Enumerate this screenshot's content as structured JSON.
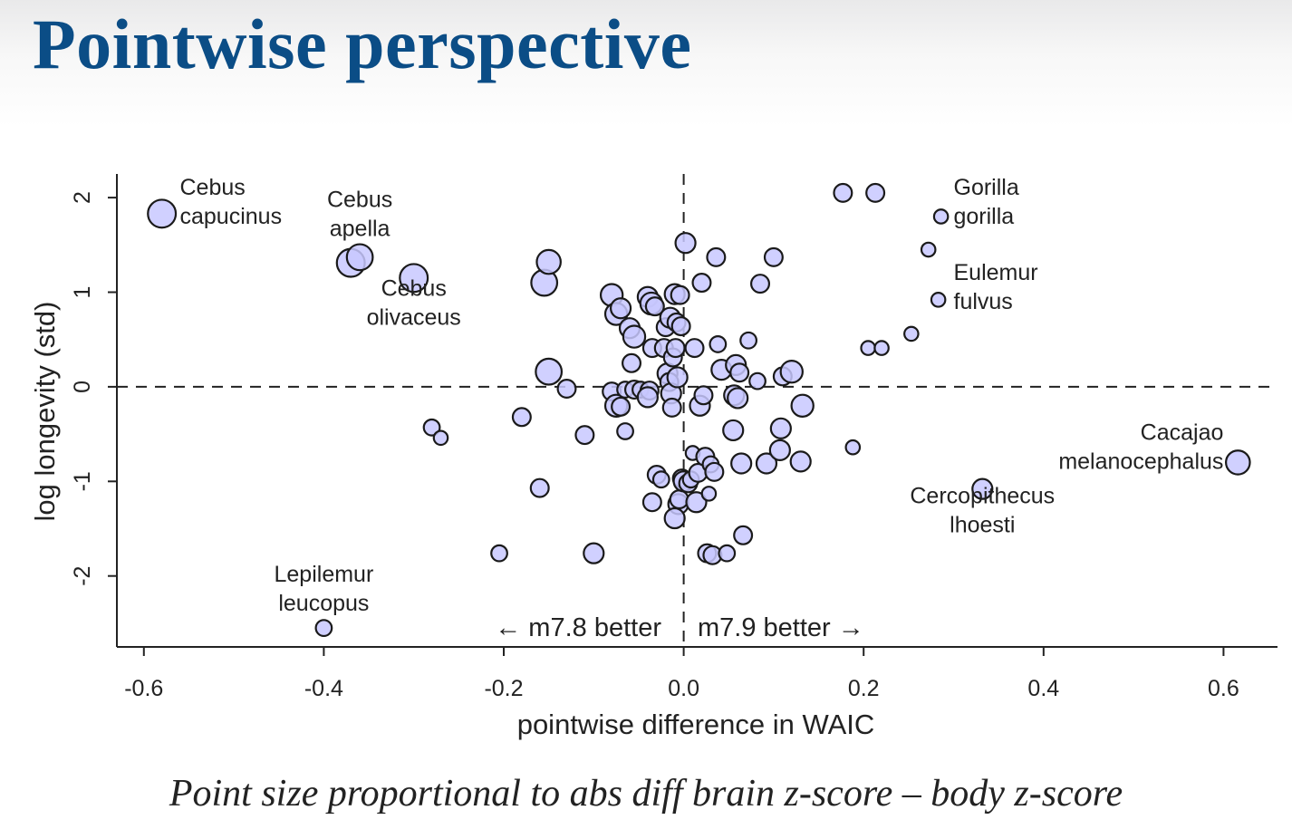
{
  "slide": {
    "title": "Pointwise perspective",
    "caption": "Point size proportional to abs diff brain z-score – body z-score"
  },
  "chart_data": {
    "type": "scatter",
    "xlabel": "pointwise difference in WAIC",
    "ylabel": "log longevity (std)",
    "xlim": [
      -0.63,
      0.66
    ],
    "ylim": [
      -2.75,
      2.25
    ],
    "xticks": [
      -0.6,
      -0.4,
      -0.2,
      0.0,
      0.2,
      0.4,
      0.6
    ],
    "xtick_labels": [
      "-0.6",
      "-0.4",
      "-0.2",
      "0.0",
      "0.2",
      "0.4",
      "0.6"
    ],
    "yticks": [
      -2,
      -1,
      0,
      1,
      2
    ],
    "ytick_labels": [
      "-2",
      "-1",
      "0",
      "1",
      "2"
    ],
    "reference_lines": {
      "x": 0,
      "y": 0,
      "style": "dashed"
    },
    "region_labels": {
      "left": "← m7.8 better",
      "right": "m7.9 better →"
    },
    "colors": {
      "point_fill": "#c8c8ff",
      "point_stroke": "#1a1a1a",
      "axis": "#222222"
    },
    "point_size_note": "abs diff brain z-score – body z-score",
    "points": [
      {
        "x": -0.58,
        "y": 1.83,
        "s": 1.4
      },
      {
        "x": -0.37,
        "y": 1.31,
        "s": 1.4
      },
      {
        "x": -0.36,
        "y": 1.37,
        "s": 1.3
      },
      {
        "x": -0.3,
        "y": 1.15,
        "s": 1.4
      },
      {
        "x": -0.4,
        "y": -2.55,
        "s": 0.8
      },
      {
        "x": -0.28,
        "y": -0.43,
        "s": 0.8
      },
      {
        "x": -0.27,
        "y": -0.54,
        "s": 0.7
      },
      {
        "x": -0.205,
        "y": -1.76,
        "s": 0.8
      },
      {
        "x": -0.18,
        "y": -0.32,
        "s": 0.9
      },
      {
        "x": -0.16,
        "y": -1.07,
        "s": 0.9
      },
      {
        "x": -0.155,
        "y": 1.1,
        "s": 1.3
      },
      {
        "x": -0.15,
        "y": 1.32,
        "s": 1.2
      },
      {
        "x": -0.15,
        "y": 0.16,
        "s": 1.3
      },
      {
        "x": -0.13,
        "y": -0.02,
        "s": 0.9
      },
      {
        "x": -0.11,
        "y": -0.51,
        "s": 0.9
      },
      {
        "x": -0.1,
        "y": -1.76,
        "s": 1.0
      },
      {
        "x": -0.08,
        "y": 0.97,
        "s": 1.1
      },
      {
        "x": -0.075,
        "y": 0.77,
        "s": 1.1
      },
      {
        "x": -0.07,
        "y": 0.83,
        "s": 1.0
      },
      {
        "x": -0.06,
        "y": 0.62,
        "s": 1.0
      },
      {
        "x": -0.055,
        "y": 0.53,
        "s": 1.1
      },
      {
        "x": -0.058,
        "y": 0.25,
        "s": 0.9
      },
      {
        "x": -0.08,
        "y": -0.05,
        "s": 0.9
      },
      {
        "x": -0.075,
        "y": -0.2,
        "s": 1.1
      },
      {
        "x": -0.07,
        "y": -0.21,
        "s": 0.9
      },
      {
        "x": -0.065,
        "y": -0.03,
        "s": 0.8
      },
      {
        "x": -0.065,
        "y": -0.47,
        "s": 0.8
      },
      {
        "x": -0.055,
        "y": -0.03,
        "s": 0.9
      },
      {
        "x": -0.048,
        "y": -0.03,
        "s": 0.8
      },
      {
        "x": -0.04,
        "y": 0.95,
        "s": 1.0
      },
      {
        "x": -0.036,
        "y": 0.88,
        "s": 1.1
      },
      {
        "x": -0.032,
        "y": 0.85,
        "s": 0.9
      },
      {
        "x": -0.035,
        "y": 0.41,
        "s": 0.9
      },
      {
        "x": -0.038,
        "y": -0.04,
        "s": 0.9
      },
      {
        "x": -0.04,
        "y": -0.11,
        "s": 1.0
      },
      {
        "x": -0.035,
        "y": -1.22,
        "s": 0.9
      },
      {
        "x": -0.03,
        "y": -0.93,
        "s": 0.9
      },
      {
        "x": -0.025,
        "y": -0.98,
        "s": 0.8
      },
      {
        "x": -0.022,
        "y": 0.41,
        "s": 0.9
      },
      {
        "x": -0.02,
        "y": 0.63,
        "s": 0.9
      },
      {
        "x": -0.018,
        "y": 0.14,
        "s": 1.0
      },
      {
        "x": -0.016,
        "y": 0.05,
        "s": 0.9
      },
      {
        "x": -0.015,
        "y": 0.73,
        "s": 1.0
      },
      {
        "x": -0.014,
        "y": -0.07,
        "s": 1.0
      },
      {
        "x": -0.013,
        "y": -0.22,
        "s": 0.9
      },
      {
        "x": -0.012,
        "y": 0.31,
        "s": 0.9
      },
      {
        "x": -0.01,
        "y": 0.98,
        "s": 1.0
      },
      {
        "x": -0.009,
        "y": 0.41,
        "s": 0.9
      },
      {
        "x": -0.008,
        "y": 0.68,
        "s": 0.9
      },
      {
        "x": -0.007,
        "y": 0.1,
        "s": 1.0
      },
      {
        "x": -0.006,
        "y": -1.24,
        "s": 1.0
      },
      {
        "x": -0.005,
        "y": -1.19,
        "s": 0.9
      },
      {
        "x": -0.01,
        "y": -1.39,
        "s": 1.0
      },
      {
        "x": -0.004,
        "y": 0.97,
        "s": 0.9
      },
      {
        "x": -0.003,
        "y": 0.64,
        "s": 0.9
      },
      {
        "x": -0.002,
        "y": -0.97,
        "s": 0.9
      },
      {
        "x": 0.0,
        "y": -1.0,
        "s": 1.0
      },
      {
        "x": 0.002,
        "y": 1.52,
        "s": 1.0
      },
      {
        "x": 0.005,
        "y": -1.02,
        "s": 0.9
      },
      {
        "x": 0.008,
        "y": -0.98,
        "s": 0.8
      },
      {
        "x": 0.01,
        "y": -0.7,
        "s": 0.7
      },
      {
        "x": 0.012,
        "y": 0.41,
        "s": 0.9
      },
      {
        "x": 0.014,
        "y": -1.22,
        "s": 1.0
      },
      {
        "x": 0.016,
        "y": -0.91,
        "s": 0.9
      },
      {
        "x": 0.018,
        "y": -0.2,
        "s": 1.0
      },
      {
        "x": 0.02,
        "y": 1.1,
        "s": 0.9
      },
      {
        "x": 0.022,
        "y": -0.09,
        "s": 0.9
      },
      {
        "x": 0.024,
        "y": -0.74,
        "s": 0.9
      },
      {
        "x": 0.026,
        "y": -1.76,
        "s": 0.9
      },
      {
        "x": 0.028,
        "y": -1.13,
        "s": 0.7
      },
      {
        "x": 0.03,
        "y": -0.82,
        "s": 0.8
      },
      {
        "x": 0.032,
        "y": -1.78,
        "s": 0.9
      },
      {
        "x": 0.034,
        "y": -0.9,
        "s": 0.9
      },
      {
        "x": 0.036,
        "y": 1.37,
        "s": 0.9
      },
      {
        "x": 0.038,
        "y": 0.45,
        "s": 0.8
      },
      {
        "x": 0.042,
        "y": 0.18,
        "s": 1.0
      },
      {
        "x": 0.048,
        "y": -1.76,
        "s": 0.8
      },
      {
        "x": 0.055,
        "y": -0.46,
        "s": 1.0
      },
      {
        "x": 0.056,
        "y": -0.09,
        "s": 1.0
      },
      {
        "x": 0.058,
        "y": 0.23,
        "s": 1.0
      },
      {
        "x": 0.06,
        "y": -0.12,
        "s": 1.0
      },
      {
        "x": 0.062,
        "y": 0.15,
        "s": 0.9
      },
      {
        "x": 0.064,
        "y": -0.81,
        "s": 1.0
      },
      {
        "x": 0.066,
        "y": -1.57,
        "s": 0.9
      },
      {
        "x": 0.072,
        "y": 0.49,
        "s": 0.8
      },
      {
        "x": 0.082,
        "y": 0.06,
        "s": 0.8
      },
      {
        "x": 0.085,
        "y": 1.09,
        "s": 0.9
      },
      {
        "x": 0.092,
        "y": -0.81,
        "s": 1.0
      },
      {
        "x": 0.1,
        "y": 1.37,
        "s": 0.9
      },
      {
        "x": 0.107,
        "y": -0.67,
        "s": 1.0
      },
      {
        "x": 0.108,
        "y": -0.44,
        "s": 1.0
      },
      {
        "x": 0.11,
        "y": 0.11,
        "s": 0.9
      },
      {
        "x": 0.12,
        "y": 0.16,
        "s": 1.1
      },
      {
        "x": 0.13,
        "y": -0.79,
        "s": 1.0
      },
      {
        "x": 0.132,
        "y": -0.2,
        "s": 1.1
      },
      {
        "x": 0.177,
        "y": 2.05,
        "s": 0.9
      },
      {
        "x": 0.188,
        "y": -0.64,
        "s": 0.7
      },
      {
        "x": 0.205,
        "y": 0.41,
        "s": 0.7
      },
      {
        "x": 0.213,
        "y": 2.05,
        "s": 0.9
      },
      {
        "x": 0.22,
        "y": 0.41,
        "s": 0.7
      },
      {
        "x": 0.253,
        "y": 0.56,
        "s": 0.7
      },
      {
        "x": 0.272,
        "y": 1.45,
        "s": 0.7
      },
      {
        "x": 0.283,
        "y": 0.92,
        "s": 0.7
      },
      {
        "x": 0.286,
        "y": 1.8,
        "s": 0.7
      },
      {
        "x": 0.332,
        "y": -1.08,
        "s": 1.0
      },
      {
        "x": 0.616,
        "y": -0.8,
        "s": 1.2
      }
    ],
    "annotations": [
      {
        "lines": [
          "Cebus",
          "capucinus"
        ],
        "x": -0.56,
        "y": 2.03,
        "align": "start"
      },
      {
        "lines": [
          "Cebus",
          "apella"
        ],
        "x": -0.36,
        "y": 1.9,
        "align": "middle"
      },
      {
        "lines": [
          "Cebus",
          "olivaceus"
        ],
        "x": -0.3,
        "y": 0.96,
        "align": "middle"
      },
      {
        "lines": [
          "Lepilemur",
          "leucopus"
        ],
        "x": -0.4,
        "y": -2.06,
        "align": "middle"
      },
      {
        "lines": [
          "Gorilla",
          "gorilla"
        ],
        "x": 0.3,
        "y": 2.03,
        "align": "start"
      },
      {
        "lines": [
          "Eulemur",
          "fulvus"
        ],
        "x": 0.3,
        "y": 1.13,
        "align": "start"
      },
      {
        "lines": [
          "Cacajao",
          "melanocephalus"
        ],
        "x": 0.6,
        "y": -0.56,
        "align": "end"
      },
      {
        "lines": [
          "Cercopithecus",
          "lhoesti"
        ],
        "x": 0.332,
        "y": -1.23,
        "align": "middle"
      }
    ]
  }
}
